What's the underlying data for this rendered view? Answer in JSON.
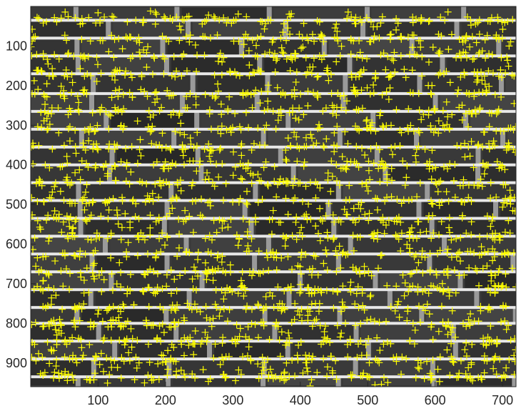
{
  "chart_data": {
    "type": "scatter",
    "title": "",
    "xlabel": "",
    "ylabel": "",
    "background": "grayscale brick-wall image with white horizontal mortar lines",
    "xlim": [
      0,
      720
    ],
    "ylim": [
      960,
      0
    ],
    "y_reversed": true,
    "grid": false,
    "x_ticks": [
      100,
      200,
      300,
      400,
      500,
      600,
      700
    ],
    "y_ticks": [
      100,
      200,
      300,
      400,
      500,
      600,
      700,
      800,
      900
    ],
    "x_tick_labels": [
      "100",
      "200",
      "300",
      "400",
      "500",
      "600",
      "700"
    ],
    "y_tick_labels": [
      "100",
      "200",
      "300",
      "400",
      "500",
      "600",
      "700",
      "800",
      "900"
    ],
    "series": [
      {
        "marker": "plus",
        "color": "#ffff00",
        "description_points": "dense plus markers clustered along brick edges and mortar joints",
        "mortar_rows_y": [
          35,
          80,
          125,
          170,
          220,
          265,
          310,
          355,
          400,
          445,
          490,
          535,
          580,
          625,
          670,
          715,
          760,
          800,
          845,
          890,
          935
        ]
      }
    ]
  },
  "colors": {
    "brick": "#3c3c3c",
    "mortar": "#e8e8e8",
    "marker": "#ffff00",
    "axis": "#262626"
  }
}
